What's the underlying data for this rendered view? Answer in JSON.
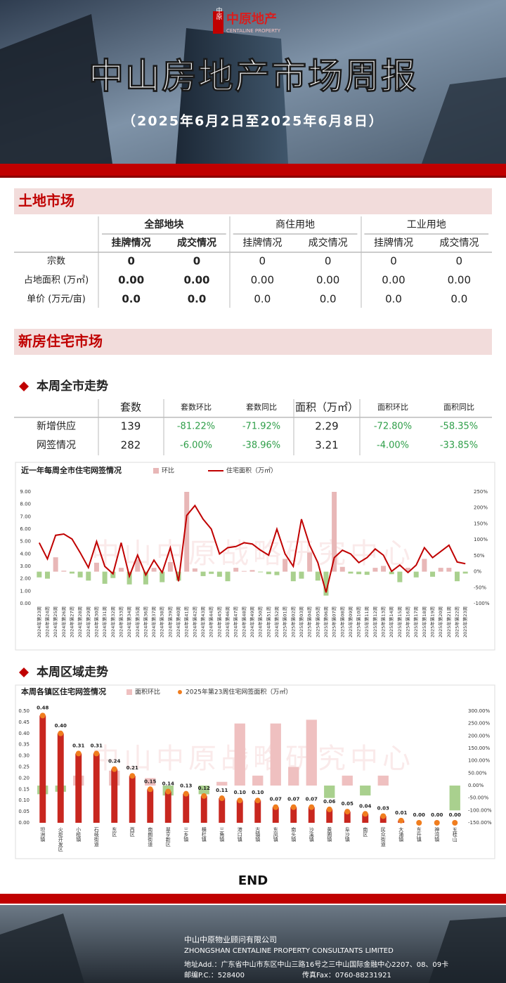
{
  "header": {
    "logo_icon": "中原",
    "logo_cn": "中原地产",
    "logo_en": "CENTALINE PROPERTY",
    "title": "中山房地产市场周报",
    "subtitle": "（2025年6月2日至2025年6月8日）"
  },
  "land_market": {
    "title": "土地市场",
    "groups": [
      "全部地块",
      "商住用地",
      "工业用地"
    ],
    "columns": [
      "挂牌情况",
      "成交情况",
      "挂牌情况",
      "成交情况",
      "挂牌情况",
      "成交情况"
    ],
    "rows": [
      {
        "label": "宗数",
        "cells": [
          "0",
          "0",
          "0",
          "0",
          "0",
          "0"
        ]
      },
      {
        "label": "占地面积 (万㎡)",
        "cells": [
          "0.00",
          "0.00",
          "0.00",
          "0.00",
          "0.00",
          "0.00"
        ]
      },
      {
        "label": "单价 (万元/亩)",
        "cells": [
          "0.0",
          "0.0",
          "0.0",
          "0.0",
          "0.0",
          "0.0"
        ]
      }
    ]
  },
  "new_home": {
    "title": "新房住宅市场",
    "city_heading": "本周全市走势",
    "city_table": {
      "columns": [
        "套数",
        "套数环比",
        "套数同比",
        "面积（万㎡）",
        "面积环比",
        "面积同比"
      ],
      "rows": [
        {
          "label": "新增供应",
          "cells": [
            "139",
            "-81.22%",
            "-71.92%",
            "2.29",
            "-72.80%",
            "-58.35%"
          ]
        },
        {
          "label": "网签情况",
          "cells": [
            "282",
            "-6.00%",
            "-38.96%",
            "3.21",
            "-4.00%",
            "-33.85%"
          ]
        }
      ]
    },
    "district_heading": "本周区域走势"
  },
  "watermark": "中山中原战略研究中心",
  "chart_data": [
    {
      "type": "combo",
      "title": "近一年每周全市住宅网签情况",
      "categories": [
        "2024年第23周",
        "2024年第24周",
        "2024年第25周",
        "2024年第26周",
        "2024年第27周",
        "2024年第28周",
        "2024年第29周",
        "2024年第30周",
        "2024年第31周",
        "2024年第32周",
        "2024年第33周",
        "2024年第34周",
        "2024年第35周",
        "2024年第36周",
        "2024年第37周",
        "2024年第38周",
        "2024年第39周",
        "2024年第40周",
        "2024年第41周",
        "2024年第42周",
        "2024年第43周",
        "2024年第44周",
        "2024年第45周",
        "2024年第46周",
        "2024年第47周",
        "2024年第48周",
        "2024年第49周",
        "2024年第50周",
        "2024年第51周",
        "2024年第52周",
        "2025年第01周",
        "2025年第02周",
        "2025年第03周",
        "2025年第04周",
        "2025年第05周",
        "2025年第06周",
        "2025年第07周",
        "2025年第08周",
        "2025年第09周",
        "2025年第10周",
        "2025年第11周",
        "2025年第12周",
        "2025年第13周",
        "2025年第14周",
        "2025年第15周",
        "2025年第16周",
        "2025年第17周",
        "2025年第18周",
        "2025年第19周",
        "2025年第20周",
        "2025年第21周",
        "2025年第22周",
        "2025年第23周"
      ],
      "series": [
        {
          "name": "环比",
          "type": "bar",
          "axis": "y2",
          "color": "#e8b7b7",
          "negative_color": "#a9d08e",
          "values": [
            -18,
            -22,
            45,
            3,
            -6,
            -18,
            -28,
            28,
            -38,
            -20,
            12,
            -40,
            38,
            -40,
            12,
            -33,
            30,
            -28,
            250,
            10,
            -14,
            -7,
            -16,
            -30,
            12,
            2,
            5,
            -2,
            -8,
            -11,
            40,
            -30,
            -22,
            60,
            -28,
            -75,
            250,
            15,
            -6,
            -8,
            -10,
            12,
            18,
            -8,
            -33,
            12,
            -18,
            40,
            -16,
            12,
            12,
            -30,
            -6
          ]
        },
        {
          "name": "住宅面积（万㎡）",
          "type": "line",
          "color": "#c00000",
          "values": [
            4.9,
            3.6,
            5.5,
            5.6,
            5.2,
            4.1,
            2.9,
            5.0,
            3.0,
            2.4,
            4.9,
            2.2,
            3.9,
            2.3,
            3.5,
            2.5,
            4.5,
            1.8,
            7.1,
            7.9,
            6.8,
            6.0,
            4.0,
            4.5,
            4.6,
            4.9,
            4.8,
            4.3,
            3.9,
            6.0,
            4.0,
            3.0,
            6.8,
            4.7,
            3.3,
            0.9,
            3.7,
            4.3,
            4.0,
            3.3,
            3.7,
            4.4,
            3.9,
            2.6,
            3.1,
            2.5,
            3.1,
            4.5,
            3.7,
            4.2,
            4.7,
            3.35,
            3.21
          ]
        }
      ],
      "ylim": [
        0,
        9
      ],
      "yticks": [
        {
          "value": 0,
          "label": "0.00"
        },
        {
          "value": 1,
          "label": "1.00"
        },
        {
          "value": 2,
          "label": "2.00"
        },
        {
          "value": 3,
          "label": "3.00"
        },
        {
          "value": 4,
          "label": "4.00"
        },
        {
          "value": 5,
          "label": "5.00"
        },
        {
          "value": 6,
          "label": "6.00"
        },
        {
          "value": 7,
          "label": "7.00"
        },
        {
          "value": 8,
          "label": "8.00"
        },
        {
          "value": 9,
          "label": "9.00"
        }
      ],
      "y2lim": [
        -100,
        250
      ],
      "y2ticks": [
        {
          "value": -100,
          "label": "-100%"
        },
        {
          "value": -50,
          "label": "-50%"
        },
        {
          "value": 0,
          "label": "0%"
        },
        {
          "value": 50,
          "label": "50%"
        },
        {
          "value": 100,
          "label": "100%"
        },
        {
          "value": 150,
          "label": "150%"
        },
        {
          "value": 200,
          "label": "200%"
        },
        {
          "value": 250,
          "label": "250%"
        }
      ],
      "grid": false
    },
    {
      "type": "combo",
      "title": "本周各镇区住宅网签情况",
      "categories": [
        "坦洲镇",
        "火炬开发区",
        "小榄镇",
        "石岐街道",
        "东区",
        "西区",
        "南朗街道",
        "翠亨新区",
        "三乡镇",
        "横栏镇",
        "三角镇",
        "港口镇",
        "古镇镇",
        "东凤镇",
        "南头镇",
        "沙溪镇",
        "黄圃镇",
        "阜沙镇",
        "南区",
        "民众街道",
        "大涌镇",
        "东升镇",
        "神湾镇",
        "五桂山"
      ],
      "series": [
        {
          "name": "面积环比",
          "type": "bar",
          "axis": "y2",
          "color": "#efc0c0",
          "negative_color": "#a9d08e",
          "values": [
            -35,
            -25,
            40,
            0,
            60,
            0,
            30,
            -40,
            0,
            -35,
            15,
            250,
            40,
            250,
            75,
            265,
            -50,
            40,
            -40,
            40,
            0,
            0,
            0,
            -100
          ]
        },
        {
          "name": "2025年第23周住宅网签面积（万㎡）",
          "type": "bar",
          "color": "#c8271f",
          "marker_color": "#f07d1e",
          "values": [
            0.48,
            0.4,
            0.31,
            0.31,
            0.24,
            0.21,
            0.15,
            0.14,
            0.13,
            0.12,
            0.11,
            0.1,
            0.1,
            0.07,
            0.07,
            0.07,
            0.06,
            0.05,
            0.04,
            0.03,
            0.01,
            0.0,
            0.0,
            0.0
          ],
          "value_labels": [
            "0.48",
            "0.40",
            "0.31",
            "0.31",
            "0.24",
            "0.21",
            "0.15",
            "0.14",
            "0.13",
            "0.12",
            "0.11",
            "0.10",
            "0.10",
            "0.07",
            "0.07",
            "0.07",
            "0.06",
            "0.05",
            "0.04",
            "0.03",
            "0.01",
            "0.00",
            "0.00",
            "0.00"
          ]
        }
      ],
      "ylim": [
        0,
        0.5
      ],
      "yticks": [
        {
          "value": 0,
          "label": "0.00"
        },
        {
          "value": 0.05,
          "label": "0.05"
        },
        {
          "value": 0.1,
          "label": "0.10"
        },
        {
          "value": 0.15,
          "label": "0.15"
        },
        {
          "value": 0.2,
          "label": "0.20"
        },
        {
          "value": 0.25,
          "label": "0.25"
        },
        {
          "value": 0.3,
          "label": "0.30"
        },
        {
          "value": 0.35,
          "label": "0.35"
        },
        {
          "value": 0.4,
          "label": "0.40"
        },
        {
          "value": 0.45,
          "label": "0.45"
        },
        {
          "value": 0.5,
          "label": "0.50"
        }
      ],
      "y2lim": [
        -150,
        300
      ],
      "y2ticks": [
        {
          "value": -150,
          "label": "-150.00%"
        },
        {
          "value": -100,
          "label": "-100.00%"
        },
        {
          "value": -50,
          "label": "-50.00%"
        },
        {
          "value": 0,
          "label": "0.00%"
        },
        {
          "value": 50,
          "label": "50.00%"
        },
        {
          "value": 100,
          "label": "100.00%"
        },
        {
          "value": 150,
          "label": "150.00%"
        },
        {
          "value": 200,
          "label": "200.00%"
        },
        {
          "value": 250,
          "label": "250.00%"
        },
        {
          "value": 300,
          "label": "300.00%"
        }
      ],
      "grid": false
    }
  ],
  "end": "END",
  "footer": {
    "company_cn": "中山中原物业顾问有限公司",
    "company_en": "ZHONGSHAN CENTALINE PROPERTY CONSULTANTS LIMITED",
    "address": "地址Add.：广东省中山市东区中山三路16号之三中山国际金融中心2207、08、09卡",
    "postcode": "邮编P.C.：528400",
    "fax": "传真Fax：0760-88231921"
  }
}
